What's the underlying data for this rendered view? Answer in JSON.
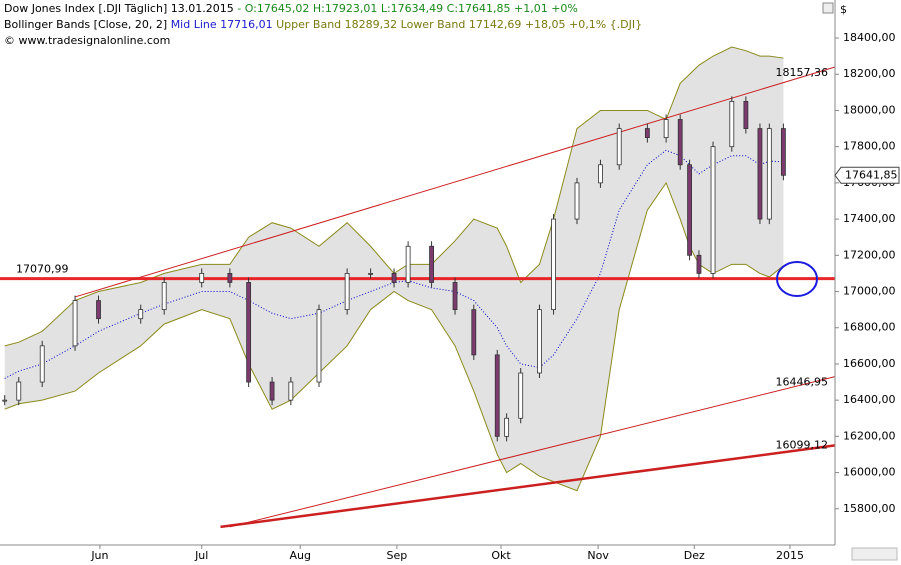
{
  "header": {
    "title": "Dow Jones Index [.DJI Täglich]",
    "date": "13.01.2015",
    "ohlc": "- O:17645,02 H:17923,01 L:17634,49 C:17641,85 +1,01 +0%",
    "indicator": "Bollinger Bands [Close, 20, 2]",
    "mid": "Mid Line 17716,01",
    "bands": "Upper Band 18289,32 Lower Band 17142,69 +18,05 +0,1% {.DJI}",
    "source": "© www.tradesignalonline.com",
    "currency": "$"
  },
  "chart_data": {
    "type": "candlestick",
    "x": [
      1,
      4,
      9,
      16,
      21,
      30,
      35,
      43,
      49,
      53,
      58,
      62,
      68,
      74,
      79,
      84,
      87,
      92,
      97,
      101,
      106,
      108,
      111,
      115,
      118,
      123,
      128,
      132,
      138,
      142,
      145,
      147,
      149,
      152,
      156,
      159,
      162,
      164,
      167
    ],
    "xlim": [
      0,
      178
    ],
    "xticks": [
      {
        "value": 21.3,
        "label": "Jun"
      },
      {
        "value": 43,
        "label": "Jul"
      },
      {
        "value": 64,
        "label": "Aug"
      },
      {
        "value": 84.6,
        "label": "Sep"
      },
      {
        "value": 106.8,
        "label": "Okt"
      },
      {
        "value": 127.5,
        "label": "Nov"
      },
      {
        "value": 148,
        "label": "Dez"
      },
      {
        "value": 168.4,
        "label": "2015"
      }
    ],
    "ylim": [
      15600,
      18610
    ],
    "yticks": [
      {
        "value": 15800,
        "label": "15800,00"
      },
      {
        "value": 16000,
        "label": "16000,00"
      },
      {
        "value": 16200,
        "label": "16200,00"
      },
      {
        "value": 16400,
        "label": "16400,00"
      },
      {
        "value": 16600,
        "label": "16600,00"
      },
      {
        "value": 16800,
        "label": "16800,00"
      },
      {
        "value": 17000,
        "label": "17000,00"
      },
      {
        "value": 17200,
        "label": "17200,00"
      },
      {
        "value": 17400,
        "label": "17400,00"
      },
      {
        "value": 17600,
        "label": "17600,00"
      },
      {
        "value": 17800,
        "label": "17800,00"
      },
      {
        "value": 18000,
        "label": "18000,00"
      },
      {
        "value": 18200,
        "label": "18200,00"
      },
      {
        "value": 18400,
        "label": "18400,00"
      }
    ],
    "close": {
      "up_color": "#ffffff",
      "down_color": "#7b3b6e",
      "values": [
        16400,
        16500,
        16700,
        16950,
        16850,
        16900,
        17050,
        17100,
        17050,
        16500,
        16400,
        16500,
        16900,
        17100,
        17100,
        17050,
        17250,
        17050,
        16900,
        16650,
        16200,
        16300,
        16550,
        16900,
        17400,
        17600,
        17700,
        17900,
        17850,
        17950,
        17700,
        17200,
        17100,
        17800,
        18050,
        17900,
        17400,
        17900,
        17641.85
      ]
    },
    "upper_band": {
      "color": "#8a8a1a",
      "values": [
        16700,
        16720,
        16780,
        16950,
        17000,
        17050,
        17100,
        17150,
        17150,
        17300,
        17380,
        17350,
        17250,
        17380,
        17250,
        17100,
        17150,
        17150,
        17280,
        17400,
        17350,
        17250,
        17050,
        17150,
        17400,
        17900,
        18000,
        18000,
        18000,
        17950,
        18150,
        18200,
        18250,
        18300,
        18350,
        18330,
        18300,
        18300,
        18289.32
      ]
    },
    "lower_band": {
      "color": "#8a8a1a",
      "values": [
        16350,
        16380,
        16400,
        16450,
        16550,
        16700,
        16820,
        16900,
        16850,
        16600,
        16350,
        16400,
        16550,
        16700,
        16900,
        17000,
        16950,
        16900,
        16700,
        16450,
        16100,
        16000,
        16050,
        15980,
        15950,
        15900,
        16200,
        16900,
        17450,
        17600,
        17400,
        17250,
        17150,
        17100,
        17150,
        17150,
        17100,
        17080,
        17142.69
      ]
    },
    "mid_line": {
      "color": "#0000cc",
      "values": [
        16520,
        16560,
        16600,
        16700,
        16780,
        16880,
        16930,
        17000,
        17000,
        16950,
        16880,
        16850,
        16880,
        16950,
        17000,
        17050,
        17060,
        17020,
        17000,
        16950,
        16800,
        16700,
        16600,
        16580,
        16650,
        16850,
        17100,
        17450,
        17700,
        17780,
        17750,
        17700,
        17650,
        17700,
        17750,
        17750,
        17700,
        17720,
        17716.01
      ]
    },
    "band_fill": "#e2e2e2",
    "trend_lines": [
      {
        "color": "#e8262a",
        "width": 3,
        "label_side": "left",
        "points": [
          [
            0,
            17070.99
          ],
          [
            178,
            17070.99
          ]
        ],
        "label": {
          "value": 17070.99,
          "label": "17070,99"
        }
      },
      {
        "color": "#cc2020",
        "width": 1,
        "label_side": "right",
        "points": [
          [
            16,
            16970
          ],
          [
            178,
            18240
          ]
        ],
        "label": {
          "value": 18157.36,
          "label": "18157,36"
        }
      },
      {
        "color": "#cc2020",
        "width": 1,
        "label_side": "right",
        "points": [
          [
            49,
            15700
          ],
          [
            178,
            16530
          ]
        ],
        "label": {
          "value": 16446.95,
          "label": "16446,95"
        }
      },
      {
        "color": "#cc2020",
        "width": 2.5,
        "label_side": "right",
        "points": [
          [
            47,
            15700
          ],
          [
            178,
            16150
          ]
        ],
        "label": {
          "value": 16099.12,
          "label": "16099,12"
        }
      }
    ],
    "last_price": {
      "value": 17641.85,
      "label": "17641,85"
    }
  }
}
